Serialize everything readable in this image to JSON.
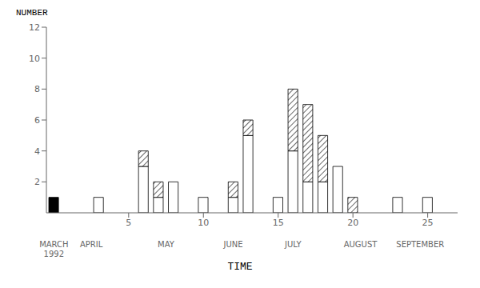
{
  "chart_data": {
    "type": "bar",
    "stacked": true,
    "grid": false,
    "x": [
      0,
      3,
      6,
      7,
      8,
      10,
      12,
      13,
      15,
      16,
      17,
      18,
      19,
      20,
      23,
      25
    ],
    "xlim": [
      -0.5,
      27
    ],
    "xticks": [
      5,
      10,
      15,
      20,
      25
    ],
    "ylim": [
      0,
      12
    ],
    "yticks": [
      2,
      4,
      6,
      8,
      10,
      12
    ],
    "ylabel": "NUMBER",
    "xlabel": "TIME",
    "series": [
      {
        "colors": [
          "black",
          "white",
          "white",
          "white",
          "white",
          "white",
          "white",
          "white",
          "white",
          "white",
          "white",
          "white",
          "white",
          "white",
          "white",
          "white"
        ],
        "values": [
          1,
          1,
          3,
          1,
          2,
          1,
          1,
          5,
          1,
          4,
          2,
          2,
          3,
          0,
          1,
          1
        ]
      },
      {
        "color": "white",
        "values": [
          0,
          0,
          1,
          1,
          0,
          0,
          1,
          1,
          0,
          4,
          5,
          3,
          0,
          1,
          0,
          0
        ]
      }
    ],
    "annotations": [
      {
        "text": "MARCH\n1992",
        "x": 0
      },
      {
        "text": "APRIL",
        "x": 2.5
      },
      {
        "text": "MAY",
        "x": 7.5
      },
      {
        "text": "JUNE",
        "x": 12
      },
      {
        "text": "JULY",
        "x": 16
      },
      {
        "text": "AUGUST",
        "x": 20.5
      },
      {
        "text": "SEPTEMBER",
        "x": 24.5
      }
    ]
  }
}
